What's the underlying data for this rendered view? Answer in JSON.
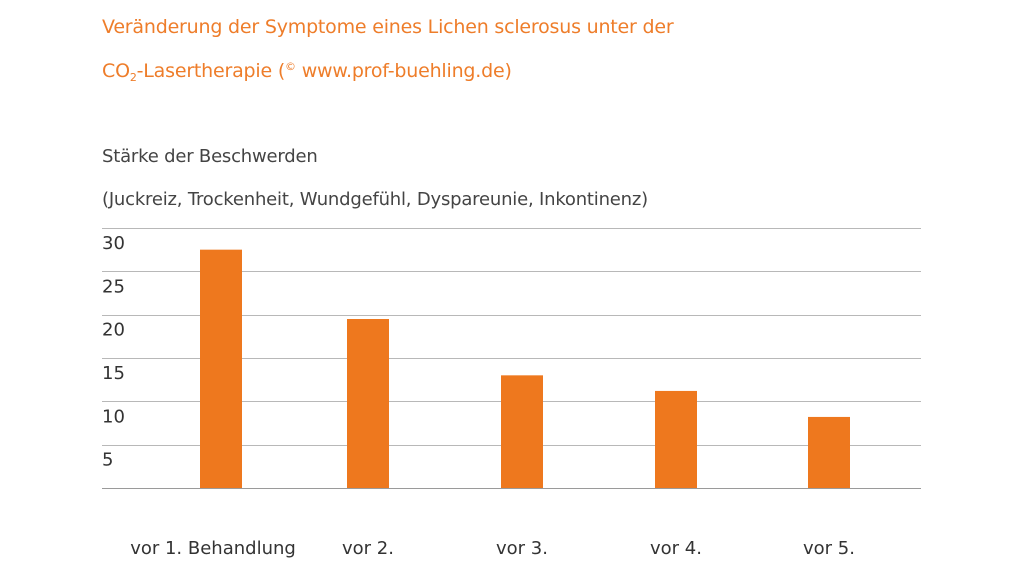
{
  "header": {
    "title_line1": "Veränderung der Symptome eines Lichen sclerosus unter der",
    "title_line2_prefix": "CO",
    "title_line2_sub": "2",
    "title_line2_mid": "-Lasertherapie (",
    "title_line2_sup": "©",
    "title_line2_suffix": " www.prof-buehling.de)"
  },
  "colors": {
    "accent": "#ee7d2a",
    "bar": "#ee781e",
    "grid": "#b8b8b8",
    "text": "#333333"
  },
  "chart_data": {
    "type": "bar",
    "title": "Veränderung der Symptome eines Lichen sclerosus unter der CO2-Lasertherapie (© www.prof-buehling.de)",
    "ylabel_line1": "Stärke der Beschwerden",
    "ylabel_line2": "(Juckreiz, Trockenheit, Wundgefühl, Dyspareunie, Inkontinenz)",
    "xlabel": "",
    "categories": [
      "vor 1. Behandlung",
      "vor 2.",
      "vor 3.",
      "vor 4.",
      "vor 5."
    ],
    "values": [
      27.5,
      19.5,
      13,
      11.2,
      8.2
    ],
    "ylim": [
      0,
      30
    ],
    "yticks": [
      5,
      10,
      15,
      20,
      25,
      30
    ],
    "grid": true,
    "legend": "none"
  }
}
